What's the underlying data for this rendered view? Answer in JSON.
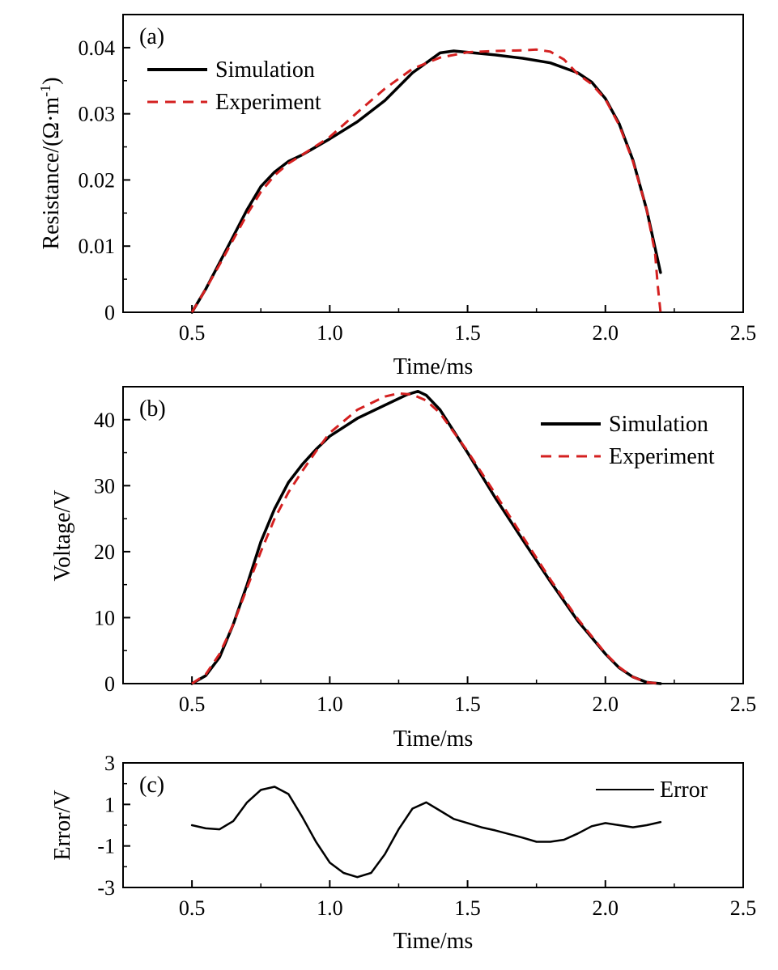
{
  "colors": {
    "simulation": "#000000",
    "experiment": "#d42020",
    "error": "#000000",
    "axis": "#000000"
  },
  "chart_data": [
    {
      "type": "line",
      "panel": "(a)",
      "xlabel": "Time/ms",
      "ylabel": "Resistance/(Ω·m",
      "ylabel_sup": "-1",
      "ylabel_close": ")",
      "xlim": [
        0.25,
        2.5
      ],
      "ylim": [
        0,
        0.045
      ],
      "xticks": [
        0.5,
        1.0,
        1.5,
        2.0,
        2.5
      ],
      "xtick_labels": [
        "0.5",
        "1.0",
        "1.5",
        "2.0",
        "2.5"
      ],
      "yticks": [
        0,
        0.01,
        0.02,
        0.03,
        0.04
      ],
      "ytick_labels": [
        "0",
        "0.01",
        "0.02",
        "0.03",
        "0.04"
      ],
      "yminor": [
        0.005,
        0.015,
        0.025,
        0.035
      ],
      "legend_position": "top-left",
      "series": [
        {
          "name": "Simulation",
          "style": "solid",
          "x": [
            0.5,
            0.55,
            0.6,
            0.65,
            0.7,
            0.75,
            0.8,
            0.85,
            0.9,
            1.0,
            1.1,
            1.2,
            1.3,
            1.4,
            1.45,
            1.5,
            1.6,
            1.7,
            1.8,
            1.9,
            1.95,
            2.0,
            2.05,
            2.1,
            2.15,
            2.2
          ],
          "y": [
            0.0,
            0.0035,
            0.0075,
            0.0115,
            0.0155,
            0.019,
            0.0212,
            0.0228,
            0.0238,
            0.0262,
            0.0288,
            0.032,
            0.0362,
            0.0392,
            0.0395,
            0.0393,
            0.0389,
            0.0384,
            0.0377,
            0.0362,
            0.0348,
            0.0323,
            0.0285,
            0.023,
            0.0155,
            0.006
          ]
        },
        {
          "name": "Experiment",
          "style": "dashed",
          "x": [
            0.5,
            0.55,
            0.6,
            0.65,
            0.7,
            0.75,
            0.8,
            0.85,
            0.9,
            1.0,
            1.1,
            1.2,
            1.3,
            1.4,
            1.5,
            1.6,
            1.7,
            1.75,
            1.8,
            1.85,
            1.9,
            1.95,
            2.0,
            2.05,
            2.1,
            2.15,
            2.18,
            2.19,
            2.2
          ],
          "y": [
            0.0,
            0.0035,
            0.0072,
            0.011,
            0.0148,
            0.0182,
            0.0207,
            0.0225,
            0.0238,
            0.0265,
            0.0302,
            0.0338,
            0.0368,
            0.0385,
            0.0393,
            0.0395,
            0.0396,
            0.0397,
            0.0394,
            0.0382,
            0.036,
            0.0345,
            0.0322,
            0.0283,
            0.0228,
            0.0155,
            0.009,
            0.004,
            0.0
          ]
        }
      ]
    },
    {
      "type": "line",
      "panel": "(b)",
      "xlabel": "Time/ms",
      "ylabel": "Voltage/V",
      "xlim": [
        0.25,
        2.5
      ],
      "ylim": [
        0,
        45
      ],
      "xticks": [
        0.5,
        1.0,
        1.5,
        2.0,
        2.5
      ],
      "xtick_labels": [
        "0.5",
        "1.0",
        "1.5",
        "2.0",
        "2.5"
      ],
      "yticks": [
        0,
        10,
        20,
        30,
        40
      ],
      "ytick_labels": [
        "0",
        "10",
        "20",
        "30",
        "40"
      ],
      "yminor": [
        5,
        15,
        25,
        35
      ],
      "legend_position": "top-right",
      "series": [
        {
          "name": "Simulation",
          "style": "solid",
          "x": [
            0.5,
            0.55,
            0.6,
            0.65,
            0.7,
            0.75,
            0.8,
            0.85,
            0.9,
            0.95,
            1.0,
            1.1,
            1.2,
            1.28,
            1.32,
            1.35,
            1.4,
            1.5,
            1.6,
            1.7,
            1.8,
            1.9,
            2.0,
            2.05,
            2.1,
            2.15,
            2.2
          ],
          "y": [
            0.0,
            1.2,
            4.0,
            9.0,
            15.0,
            21.5,
            26.5,
            30.5,
            33.2,
            35.5,
            37.5,
            40.2,
            42.2,
            43.8,
            44.3,
            43.7,
            41.5,
            35.0,
            28.2,
            21.8,
            15.5,
            9.5,
            4.5,
            2.4,
            1.0,
            0.2,
            0.0
          ]
        },
        {
          "name": "Experiment",
          "style": "dashed",
          "x": [
            0.5,
            0.55,
            0.6,
            0.65,
            0.7,
            0.75,
            0.8,
            0.85,
            0.9,
            0.95,
            1.0,
            1.1,
            1.2,
            1.25,
            1.3,
            1.35,
            1.4,
            1.5,
            1.6,
            1.7,
            1.8,
            1.9,
            2.0,
            2.05,
            2.1,
            2.15,
            2.2
          ],
          "y": [
            0.0,
            1.4,
            4.5,
            9.0,
            14.5,
            20.0,
            25.0,
            29.0,
            32.2,
            35.2,
            38.0,
            41.5,
            43.5,
            44.0,
            43.8,
            42.9,
            41.0,
            35.2,
            28.8,
            22.3,
            15.8,
            9.8,
            4.6,
            2.5,
            1.0,
            0.2,
            0.0
          ]
        }
      ]
    },
    {
      "type": "line",
      "panel": "(c)",
      "xlabel": "Time/ms",
      "ylabel": "Error/V",
      "xlim": [
        0.25,
        2.5
      ],
      "ylim": [
        -3,
        3
      ],
      "xticks": [
        0.5,
        1.0,
        1.5,
        2.0,
        2.5
      ],
      "xtick_labels": [
        "0.5",
        "1.0",
        "1.5",
        "2.0",
        "2.5"
      ],
      "yticks": [
        -3,
        -1,
        1,
        3
      ],
      "ytick_labels": [
        "-3",
        "-1",
        "1",
        "3"
      ],
      "yminor": [
        -2,
        0,
        2
      ],
      "legend_position": "top-right",
      "series": [
        {
          "name": "Error",
          "style": "solid",
          "x": [
            0.5,
            0.55,
            0.6,
            0.65,
            0.7,
            0.75,
            0.8,
            0.85,
            0.9,
            0.95,
            1.0,
            1.05,
            1.1,
            1.15,
            1.2,
            1.25,
            1.3,
            1.35,
            1.4,
            1.45,
            1.5,
            1.55,
            1.6,
            1.7,
            1.75,
            1.8,
            1.85,
            1.9,
            1.95,
            2.0,
            2.05,
            2.1,
            2.15,
            2.2
          ],
          "y": [
            0.0,
            -0.15,
            -0.2,
            0.2,
            1.1,
            1.7,
            1.85,
            1.5,
            0.4,
            -0.8,
            -1.8,
            -2.3,
            -2.5,
            -2.3,
            -1.4,
            -0.2,
            0.8,
            1.1,
            0.7,
            0.3,
            0.1,
            -0.1,
            -0.25,
            -0.6,
            -0.8,
            -0.8,
            -0.7,
            -0.4,
            -0.05,
            0.1,
            0.0,
            -0.1,
            0.0,
            0.15
          ]
        }
      ]
    }
  ]
}
